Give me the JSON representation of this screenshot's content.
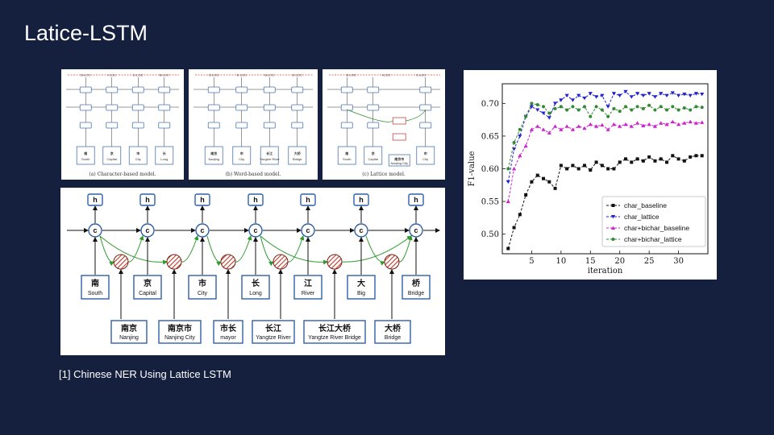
{
  "slide": {
    "title": "Latice-LSTM",
    "footnote": "[1] Chinese NER Using Lattice LSTM"
  },
  "panels": {
    "char_model": {
      "caption": "(a) Character-based model.",
      "tags": [
        "B-LOC",
        "I-LOC",
        "E-LOC",
        "B-LOC"
      ],
      "chars": [
        [
          "南",
          "South"
        ],
        [
          "京",
          "Capital"
        ],
        [
          "市",
          "City"
        ],
        [
          "长",
          "Long"
        ]
      ]
    },
    "word_model": {
      "caption": "(b) Word-based model.",
      "tags": [
        "B-LOC",
        "E-LOC",
        "B-LOC",
        "E-LOC"
      ],
      "words": [
        [
          "南京",
          "Nanjing"
        ],
        [
          "市",
          "City"
        ],
        [
          "长江",
          "Yangtze River"
        ],
        [
          "大桥",
          "Bridge"
        ]
      ]
    },
    "lattice_model": {
      "caption": "(c) Lattice model.",
      "tags": [
        "B-LOC",
        "I-LOC",
        "E-LOC"
      ],
      "chars": [
        [
          "南",
          "South"
        ],
        [
          "京",
          "Capital"
        ],
        [
          "市",
          "City"
        ]
      ],
      "word": [
        "南京市",
        "Nanjing City"
      ]
    },
    "lattice_big": {
      "hidden_label": "h",
      "cell_label": "c",
      "chars": [
        {
          "zh": "南",
          "en": "South"
        },
        {
          "zh": "京",
          "en": "Capital"
        },
        {
          "zh": "市",
          "en": "City"
        },
        {
          "zh": "长",
          "en": "Long"
        },
        {
          "zh": "江",
          "en": "River"
        },
        {
          "zh": "大",
          "en": "Big"
        },
        {
          "zh": "桥",
          "en": "Bridge"
        }
      ],
      "words": [
        {
          "zh": "南京",
          "en": "Nanjing"
        },
        {
          "zh": "南京市",
          "en": "Nanjing City"
        },
        {
          "zh": "市长",
          "en": "mayor"
        },
        {
          "zh": "长江",
          "en": "Yangtze River"
        },
        {
          "zh": "长江大桥",
          "en": "Yangtze River Bridge"
        },
        {
          "zh": "大桥",
          "en": "Bridge"
        }
      ]
    }
  },
  "chart_data": {
    "type": "line",
    "xlabel": "iteration",
    "ylabel": "F1-value",
    "xlim": [
      0,
      35
    ],
    "ylim": [
      0.47,
      0.73
    ],
    "xticks": [
      5,
      10,
      15,
      20,
      25,
      30
    ],
    "yticks": [
      0.5,
      0.55,
      0.6,
      0.65,
      0.7
    ],
    "legend_position": "lower-right",
    "series": [
      {
        "name": "char_baseline",
        "color": "#111111",
        "marker": "square",
        "x": [
          1,
          2,
          3,
          4,
          5,
          6,
          7,
          8,
          9,
          10,
          11,
          12,
          13,
          14,
          15,
          16,
          17,
          18,
          19,
          20,
          21,
          22,
          23,
          24,
          25,
          26,
          27,
          28,
          29,
          30,
          31,
          32,
          33,
          34
        ],
        "y": [
          0.478,
          0.51,
          0.53,
          0.56,
          0.58,
          0.59,
          0.585,
          0.58,
          0.57,
          0.605,
          0.6,
          0.605,
          0.6,
          0.605,
          0.598,
          0.61,
          0.605,
          0.6,
          0.6,
          0.61,
          0.615,
          0.61,
          0.615,
          0.612,
          0.618,
          0.612,
          0.615,
          0.61,
          0.62,
          0.615,
          0.612,
          0.618,
          0.62,
          0.62
        ]
      },
      {
        "name": "char_lattice",
        "color": "#2222cc",
        "marker": "triangle-down",
        "x": [
          1,
          2,
          3,
          4,
          5,
          6,
          7,
          8,
          9,
          10,
          11,
          12,
          13,
          14,
          15,
          16,
          17,
          18,
          19,
          20,
          21,
          22,
          23,
          24,
          25,
          26,
          27,
          28,
          29,
          30,
          31,
          32,
          33,
          34
        ],
        "y": [
          0.58,
          0.63,
          0.65,
          0.68,
          0.695,
          0.69,
          0.685,
          0.678,
          0.7,
          0.705,
          0.712,
          0.705,
          0.712,
          0.708,
          0.715,
          0.71,
          0.712,
          0.695,
          0.715,
          0.712,
          0.718,
          0.71,
          0.715,
          0.712,
          0.715,
          0.71,
          0.715,
          0.712,
          0.716,
          0.712,
          0.714,
          0.712,
          0.715,
          0.714
        ]
      },
      {
        "name": "char+bichar_baseline",
        "color": "#cc22cc",
        "marker": "triangle-up",
        "x": [
          1,
          2,
          3,
          4,
          5,
          6,
          7,
          8,
          9,
          10,
          11,
          12,
          13,
          14,
          15,
          16,
          17,
          18,
          19,
          20,
          21,
          22,
          23,
          24,
          25,
          26,
          27,
          28,
          29,
          30,
          31,
          32,
          33,
          34
        ],
        "y": [
          0.55,
          0.6,
          0.62,
          0.635,
          0.66,
          0.665,
          0.66,
          0.655,
          0.665,
          0.66,
          0.665,
          0.66,
          0.665,
          0.662,
          0.668,
          0.665,
          0.667,
          0.66,
          0.668,
          0.665,
          0.668,
          0.665,
          0.67,
          0.666,
          0.668,
          0.665,
          0.67,
          0.668,
          0.672,
          0.668,
          0.67,
          0.672,
          0.67,
          0.671
        ]
      },
      {
        "name": "char+bichar_lattice",
        "color": "#338833",
        "marker": "circle",
        "x": [
          1,
          2,
          3,
          4,
          5,
          6,
          7,
          8,
          9,
          10,
          11,
          12,
          13,
          14,
          15,
          16,
          17,
          18,
          19,
          20,
          21,
          22,
          23,
          24,
          25,
          26,
          27,
          28,
          29,
          30,
          31,
          32,
          33,
          34
        ],
        "y": [
          0.6,
          0.64,
          0.66,
          0.68,
          0.7,
          0.698,
          0.695,
          0.685,
          0.692,
          0.695,
          0.69,
          0.695,
          0.69,
          0.695,
          0.68,
          0.695,
          0.69,
          0.68,
          0.692,
          0.688,
          0.695,
          0.69,
          0.695,
          0.692,
          0.697,
          0.69,
          0.695,
          0.69,
          0.695,
          0.69,
          0.693,
          0.69,
          0.695,
          0.694
        ]
      }
    ]
  }
}
